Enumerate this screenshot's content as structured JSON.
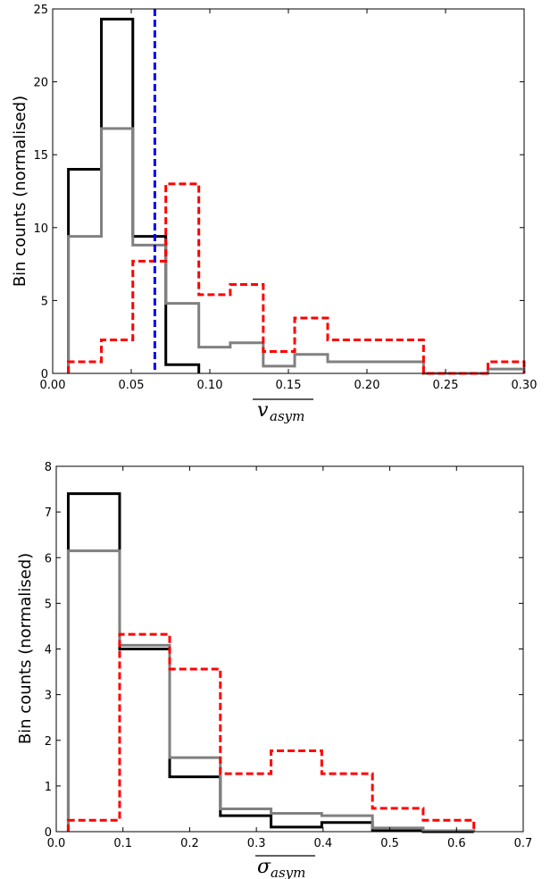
{
  "chart_data": [
    {
      "type": "line",
      "panel": "top",
      "xlabel": "v",
      "xlabel_sub": "asym",
      "xlabel_overline": true,
      "ylabel": "Bin counts (normalised)",
      "xlim": [
        0.0,
        0.3
      ],
      "ylim": [
        0,
        25
      ],
      "xticks": [
        "0.00",
        "0.05",
        "0.10",
        "0.15",
        "0.20",
        "0.25",
        "0.30"
      ],
      "xtick_values": [
        0.0,
        0.05,
        0.1,
        0.15,
        0.2,
        0.25,
        0.3
      ],
      "yticks": [
        "0",
        "5",
        "10",
        "15",
        "20",
        "25"
      ],
      "ytick_values": [
        0,
        5,
        10,
        15,
        20,
        25
      ],
      "grid": false,
      "series": [
        {
          "style": "step",
          "color": "#000000",
          "dash": "solid",
          "edges": [
            0.01,
            0.031,
            0.051,
            0.072,
            0.093
          ],
          "values": [
            14.0,
            24.3,
            9.4,
            0.6
          ]
        },
        {
          "style": "step",
          "color": "#808080",
          "dash": "solid",
          "edges": [
            0.01,
            0.031,
            0.051,
            0.072,
            0.093,
            0.113,
            0.134,
            0.154,
            0.175,
            0.236,
            0.277,
            0.3
          ],
          "values": [
            9.4,
            16.8,
            8.8,
            4.8,
            1.8,
            2.1,
            0.5,
            1.3,
            0.8,
            0.0,
            0.3
          ]
        },
        {
          "style": "step",
          "color": "#ff0000",
          "dash": "dashed",
          "edges": [
            0.01,
            0.031,
            0.051,
            0.072,
            0.093,
            0.113,
            0.134,
            0.154,
            0.175,
            0.236,
            0.277,
            0.3
          ],
          "values": [
            0.8,
            2.3,
            7.7,
            13.0,
            5.4,
            6.1,
            1.5,
            3.8,
            2.3,
            0.0,
            0.8
          ]
        }
      ],
      "reference_lines": [
        {
          "orientation": "vertical",
          "x": 0.065,
          "color": "#0000ff",
          "dash": "dashed"
        }
      ]
    },
    {
      "type": "line",
      "panel": "bottom",
      "xlabel": "σ",
      "xlabel_sub": "asym",
      "xlabel_overline": true,
      "ylabel": "Bin counts (normalised)",
      "xlim": [
        0.0,
        0.7
      ],
      "ylim": [
        0,
        8
      ],
      "xticks": [
        "0.0",
        "0.1",
        "0.2",
        "0.3",
        "0.4",
        "0.5",
        "0.6",
        "0.7"
      ],
      "xtick_values": [
        0.0,
        0.1,
        0.2,
        0.3,
        0.4,
        0.5,
        0.6,
        0.7
      ],
      "yticks": [
        "0",
        "1",
        "2",
        "3",
        "4",
        "5",
        "6",
        "7",
        "8"
      ],
      "ytick_values": [
        0,
        1,
        2,
        3,
        4,
        5,
        6,
        7,
        8
      ],
      "grid": false,
      "series": [
        {
          "style": "step",
          "color": "#000000",
          "dash": "solid",
          "edges": [
            0.018,
            0.095,
            0.17,
            0.246,
            0.322,
            0.398,
            0.474,
            0.55,
            0.626
          ],
          "values": [
            7.4,
            4.0,
            1.2,
            0.35,
            0.1,
            0.2,
            0.02,
            0.0
          ]
        },
        {
          "style": "step",
          "color": "#808080",
          "dash": "solid",
          "edges": [
            0.018,
            0.095,
            0.17,
            0.246,
            0.322,
            0.398,
            0.474,
            0.55,
            0.626
          ],
          "values": [
            6.15,
            4.08,
            1.62,
            0.5,
            0.4,
            0.35,
            0.08,
            0.02
          ]
        },
        {
          "style": "step",
          "color": "#ff0000",
          "dash": "dashed",
          "edges": [
            0.018,
            0.095,
            0.17,
            0.246,
            0.322,
            0.398,
            0.474,
            0.55,
            0.626
          ],
          "values": [
            0.25,
            4.32,
            3.56,
            1.27,
            1.77,
            1.27,
            0.51,
            0.25
          ]
        }
      ],
      "reference_lines": []
    }
  ]
}
